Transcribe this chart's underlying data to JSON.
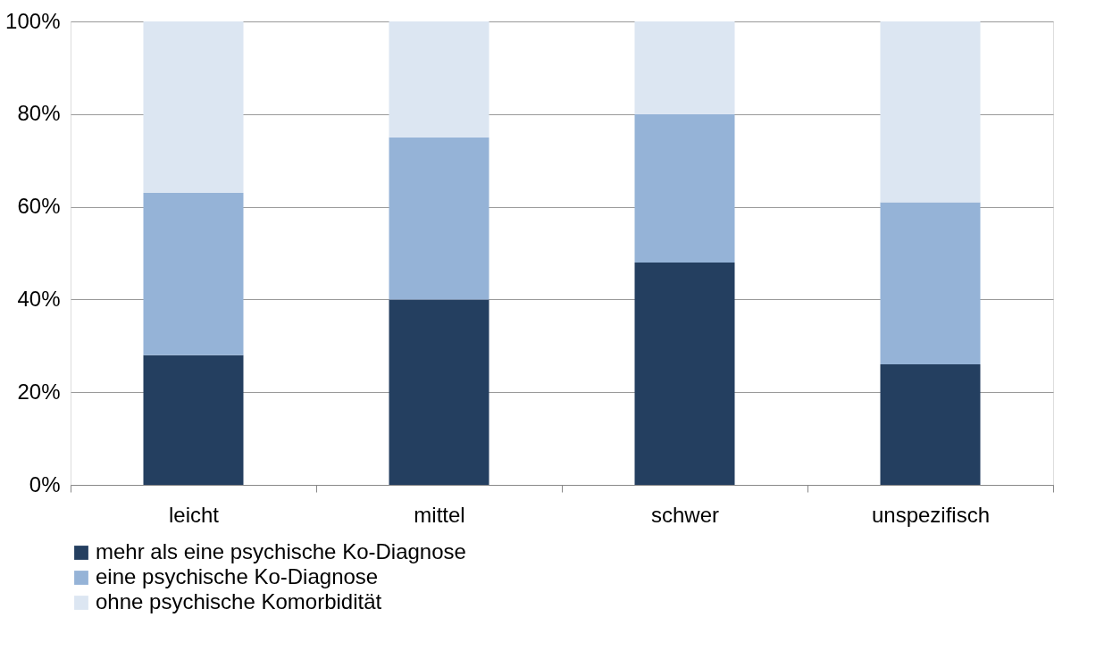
{
  "chart_data": {
    "type": "bar",
    "stacked": true,
    "categories": [
      "leicht",
      "mittel",
      "schwer",
      "unspezifisch"
    ],
    "series": [
      {
        "name": "mehr als eine psychische Ko-Diagnose",
        "color": "#243f60",
        "values": [
          28,
          40,
          48,
          26
        ]
      },
      {
        "name": "eine psychische Ko-Diagnose",
        "color": "#95b3d7",
        "values": [
          35,
          35,
          32,
          35
        ]
      },
      {
        "name": "ohne psychische Komorbidität",
        "color": "#dce6f2",
        "values": [
          37,
          25,
          20,
          39
        ]
      }
    ],
    "ylim": [
      0,
      100
    ],
    "yticks": [
      {
        "value": 0,
        "label": "0%"
      },
      {
        "value": 20,
        "label": "20%"
      },
      {
        "value": 40,
        "label": "40%"
      },
      {
        "value": 60,
        "label": "60%"
      },
      {
        "value": 80,
        "label": "80%"
      },
      {
        "value": 100,
        "label": "100%"
      }
    ],
    "grid": "y",
    "legend": "bottom"
  }
}
